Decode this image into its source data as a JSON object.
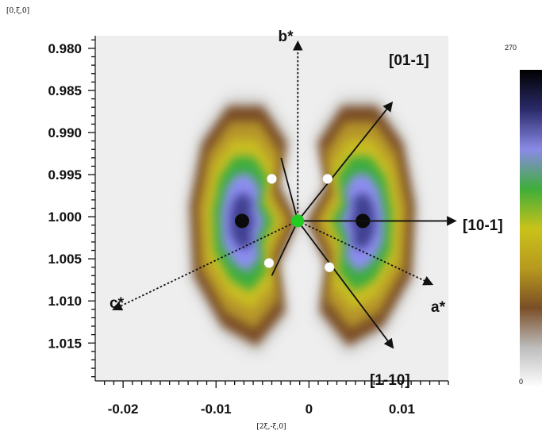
{
  "chart_data": {
    "type": "heatmap",
    "xlabel": "[2ξ,-ξ,0]",
    "ylabel": "[0,ξ,0]",
    "xlim": [
      -0.023,
      0.015
    ],
    "ylim": [
      1.0195,
      0.9785
    ],
    "x_ticks": [
      {
        "value": -0.02,
        "label": "-0.02"
      },
      {
        "value": -0.01,
        "label": "-0.01"
      },
      {
        "value": 0,
        "label": "0"
      },
      {
        "value": 0.01,
        "label": "0.01"
      }
    ],
    "y_ticks": [
      {
        "value": 0.98,
        "label": "0.980"
      },
      {
        "value": 0.985,
        "label": "0.985"
      },
      {
        "value": 0.99,
        "label": "0.990"
      },
      {
        "value": 0.995,
        "label": "0.995"
      },
      {
        "value": 1.0,
        "label": "1.000"
      },
      {
        "value": 1.005,
        "label": "1.005"
      },
      {
        "value": 1.01,
        "label": "1.010"
      },
      {
        "value": 1.015,
        "label": "1.015"
      }
    ],
    "colorbar": {
      "min": 0,
      "max": 270,
      "min_label": "0",
      "max_label": "270",
      "colors": [
        "#ffffff",
        "#bdbdbd",
        "#7a4e26",
        "#b79a1e",
        "#c9c21a",
        "#3fae3a",
        "#8a8ae6",
        "#2a2a6a",
        "#000000"
      ]
    },
    "peaks": [
      {
        "x": -0.0072,
        "y": 1.0005,
        "intensity": 270
      },
      {
        "x": 0.0058,
        "y": 1.0005,
        "intensity": 270
      }
    ],
    "center": {
      "x": -0.0012,
      "y": 1.0005,
      "color": "#22cc22"
    },
    "markers": [
      {
        "x": -0.004,
        "y": 0.9955,
        "color": "#ffffff"
      },
      {
        "x": 0.002,
        "y": 0.9955,
        "color": "#ffffff"
      },
      {
        "x": -0.0043,
        "y": 1.0055,
        "color": "#ffffff"
      },
      {
        "x": 0.0022,
        "y": 1.006,
        "color": "#ffffff"
      }
    ],
    "directions": [
      {
        "label": "b*",
        "style": "dotted",
        "end": {
          "x": -0.0012,
          "y": 0.9793
        }
      },
      {
        "label": "[01-1]",
        "style": "solid",
        "end": {
          "x": 0.0089,
          "y": 0.9865
        }
      },
      {
        "label": "[10-1]",
        "style": "solid",
        "end": {
          "x": 0.0157,
          "y": 1.0005
        }
      },
      {
        "label": "a*",
        "style": "dotted",
        "end": {
          "x": 0.0132,
          "y": 1.008
        }
      },
      {
        "label": "[1-10]",
        "style": "solid",
        "end": {
          "x": 0.009,
          "y": 1.0155
        }
      },
      {
        "label": "c*",
        "style": "dotted",
        "end": {
          "x": -0.021,
          "y": 1.011
        }
      },
      {
        "label": "",
        "style": "solid",
        "end": {
          "x": -0.003,
          "y": 0.993
        }
      },
      {
        "label": "",
        "style": "solid",
        "end": {
          "x": -0.004,
          "y": 1.007
        }
      }
    ]
  }
}
